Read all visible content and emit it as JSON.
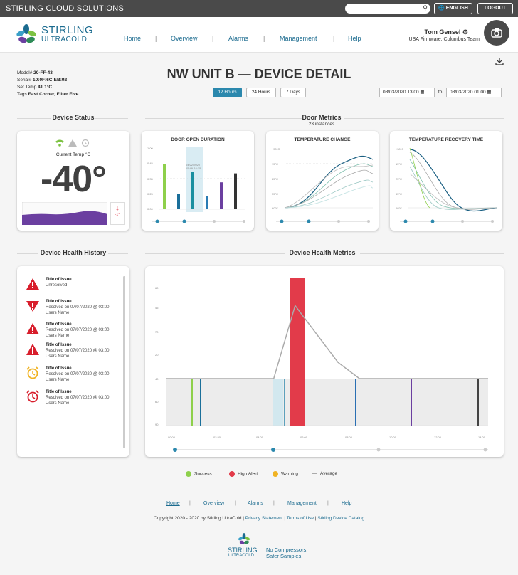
{
  "topbar": {
    "brand": "STIRLING CLOUD SOLUTIONS",
    "language": "ENGLISH",
    "logout": "LOGOUT"
  },
  "logo": {
    "line1": "STIRLING",
    "line2": "ULTRACOLD"
  },
  "nav": {
    "items": [
      "Home",
      "Overview",
      "Alarms",
      "Management",
      "Help"
    ]
  },
  "user": {
    "name": "Tom Gensel",
    "team": "USA Firmware, Columbus Team"
  },
  "device": {
    "model_label": "Model#",
    "model": "20-FF-43",
    "serial_label": "Serial#",
    "serial": "10:0F:6C:EB:92",
    "set_temp_label": "Set Temp",
    "set_temp": "41.1°C",
    "tags_label": "Tags",
    "tags": "East Corner, Filter Five"
  },
  "page": {
    "title": "NW UNIT B — DEVICE DETAIL"
  },
  "range": {
    "buttons": [
      "12 Hours",
      "24 Hours",
      "7 Days"
    ],
    "from": "08/03/2020 13:00",
    "to_label": "to",
    "to": "08/03/2020 01:00"
  },
  "sections": {
    "device_status": "Device Status",
    "door_metrics": "Door Metrics",
    "door_metrics_count": "23 instances",
    "health_history": "Device Health History",
    "health_metrics": "Device Health Metrics"
  },
  "status_card": {
    "current_temp_label": "Current Temp °C",
    "current_temp": "-40°",
    "mini_value": "-1°"
  },
  "door_cards": {
    "open_duration": "DOOR OPEN DURATION",
    "temp_change": "TEMPERATURE CHANGE",
    "temp_recovery": "TEMPERATURE RECOVERY TIME",
    "tooltip_date": "04/22/2020",
    "tooltip_time": "15:49-16:15"
  },
  "issues": [
    {
      "title": "Title of Issue",
      "line1": "Unresolved",
      "line2": "",
      "icon": "warning-triangle-icon"
    },
    {
      "title": "Title of Issue",
      "line1": "Resolved on 07/07/2020 @ 03:00",
      "line2": "Users Name",
      "icon": "door-open-alert-icon"
    },
    {
      "title": "Title of Issue",
      "line1": "Resolved on 07/07/2020 @ 03:00",
      "line2": "Users Name",
      "icon": "warning-triangle-icon"
    },
    {
      "title": "Title of Issue",
      "line1": "Resolved on 07/07/2020 @ 03:00",
      "line2": "Users Name",
      "icon": "warning-triangle-icon"
    },
    {
      "title": "Title of Issue",
      "line1": "Resolved on 07/07/2020 @ 03:00",
      "line2": "Users Name",
      "icon": "alarm-clock-yellow-icon"
    },
    {
      "title": "Title of Issue",
      "line1": "Resolved on 07/07/2020 @ 03:00",
      "line2": "Users Name",
      "icon": "alarm-clock-red-icon"
    }
  ],
  "legend": {
    "success": "Success",
    "high_alert": "High Alert",
    "warning": "Warning",
    "average": "Average"
  },
  "chart_data": [
    {
      "type": "bar",
      "title": "DOOR OPEN DURATION",
      "values": [
        0.75,
        0.25,
        0.62,
        0.22,
        0.45,
        0.6
      ],
      "colors": [
        "#8ed04b",
        "#1a6f9a",
        "#1a8fa0",
        "#2a7bb3",
        "#6b3fa0",
        "#333333"
      ],
      "ylim": [
        0,
        1
      ]
    },
    {
      "type": "line",
      "title": "TEMPERATURE CHANGE",
      "series_count": 6
    },
    {
      "type": "line",
      "title": "TEMPERATURE RECOVERY TIME",
      "series_count": 6
    },
    {
      "type": "line",
      "title": "Device Health Metrics",
      "average_line": [
        0,
        0,
        0,
        0,
        0,
        0,
        0.9,
        0.55,
        0.2,
        0,
        0,
        0,
        0,
        0,
        0,
        0
      ]
    }
  ],
  "footer": {
    "links": [
      "Home",
      "Overview",
      "Alarms",
      "Management",
      "Help"
    ],
    "copyright": "Copyright 2020 - 2020 by Stirling UltraCold",
    "privacy": "Privacy Statement",
    "terms": "Terms of Use",
    "catalog": "Stirling Device Catalog",
    "tagline1": "No Compressors.",
    "tagline2": "Safer Samples."
  },
  "colors": {
    "accent": "#2b88ad",
    "success": "#8ed04b",
    "high_alert": "#e23b4a",
    "warning": "#f0b323",
    "average": "#aaaaaa"
  }
}
